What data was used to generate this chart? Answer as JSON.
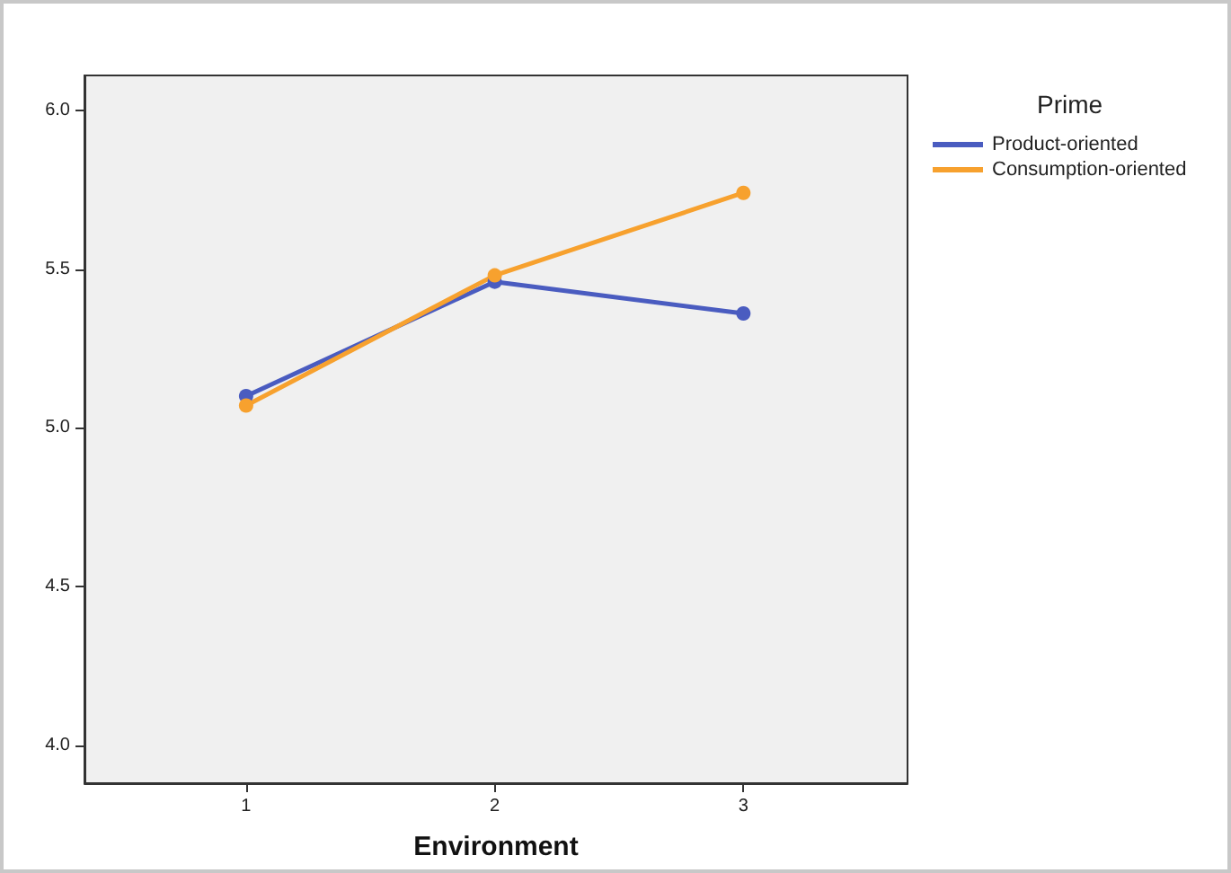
{
  "chart_data": {
    "type": "line",
    "xlabel": "Environment",
    "legend_title": "Prime",
    "x": [
      1,
      2,
      3
    ],
    "series": [
      {
        "name": "Product-oriented",
        "color": "#4a5cc0",
        "values": [
          5.1,
          5.46,
          5.36
        ]
      },
      {
        "name": "Consumption-oriented",
        "color": "#f7a12e",
        "values": [
          5.07,
          5.48,
          5.74
        ]
      }
    ],
    "xlim": [
      0.35,
      3.66
    ],
    "xticks": [
      1,
      2,
      3
    ],
    "ylim": [
      3.88,
      6.11
    ],
    "yticks": [
      {
        "value": 4,
        "label": "4.0"
      },
      {
        "value": 4.5,
        "label": "4.5"
      },
      {
        "value": 5,
        "label": "5.0"
      },
      {
        "value": 5.5,
        "label": "5.5"
      },
      {
        "value": 6,
        "label": "6.0"
      }
    ],
    "grid": false,
    "legend": "top right",
    "marker": "circle",
    "line_style": "solid"
  }
}
